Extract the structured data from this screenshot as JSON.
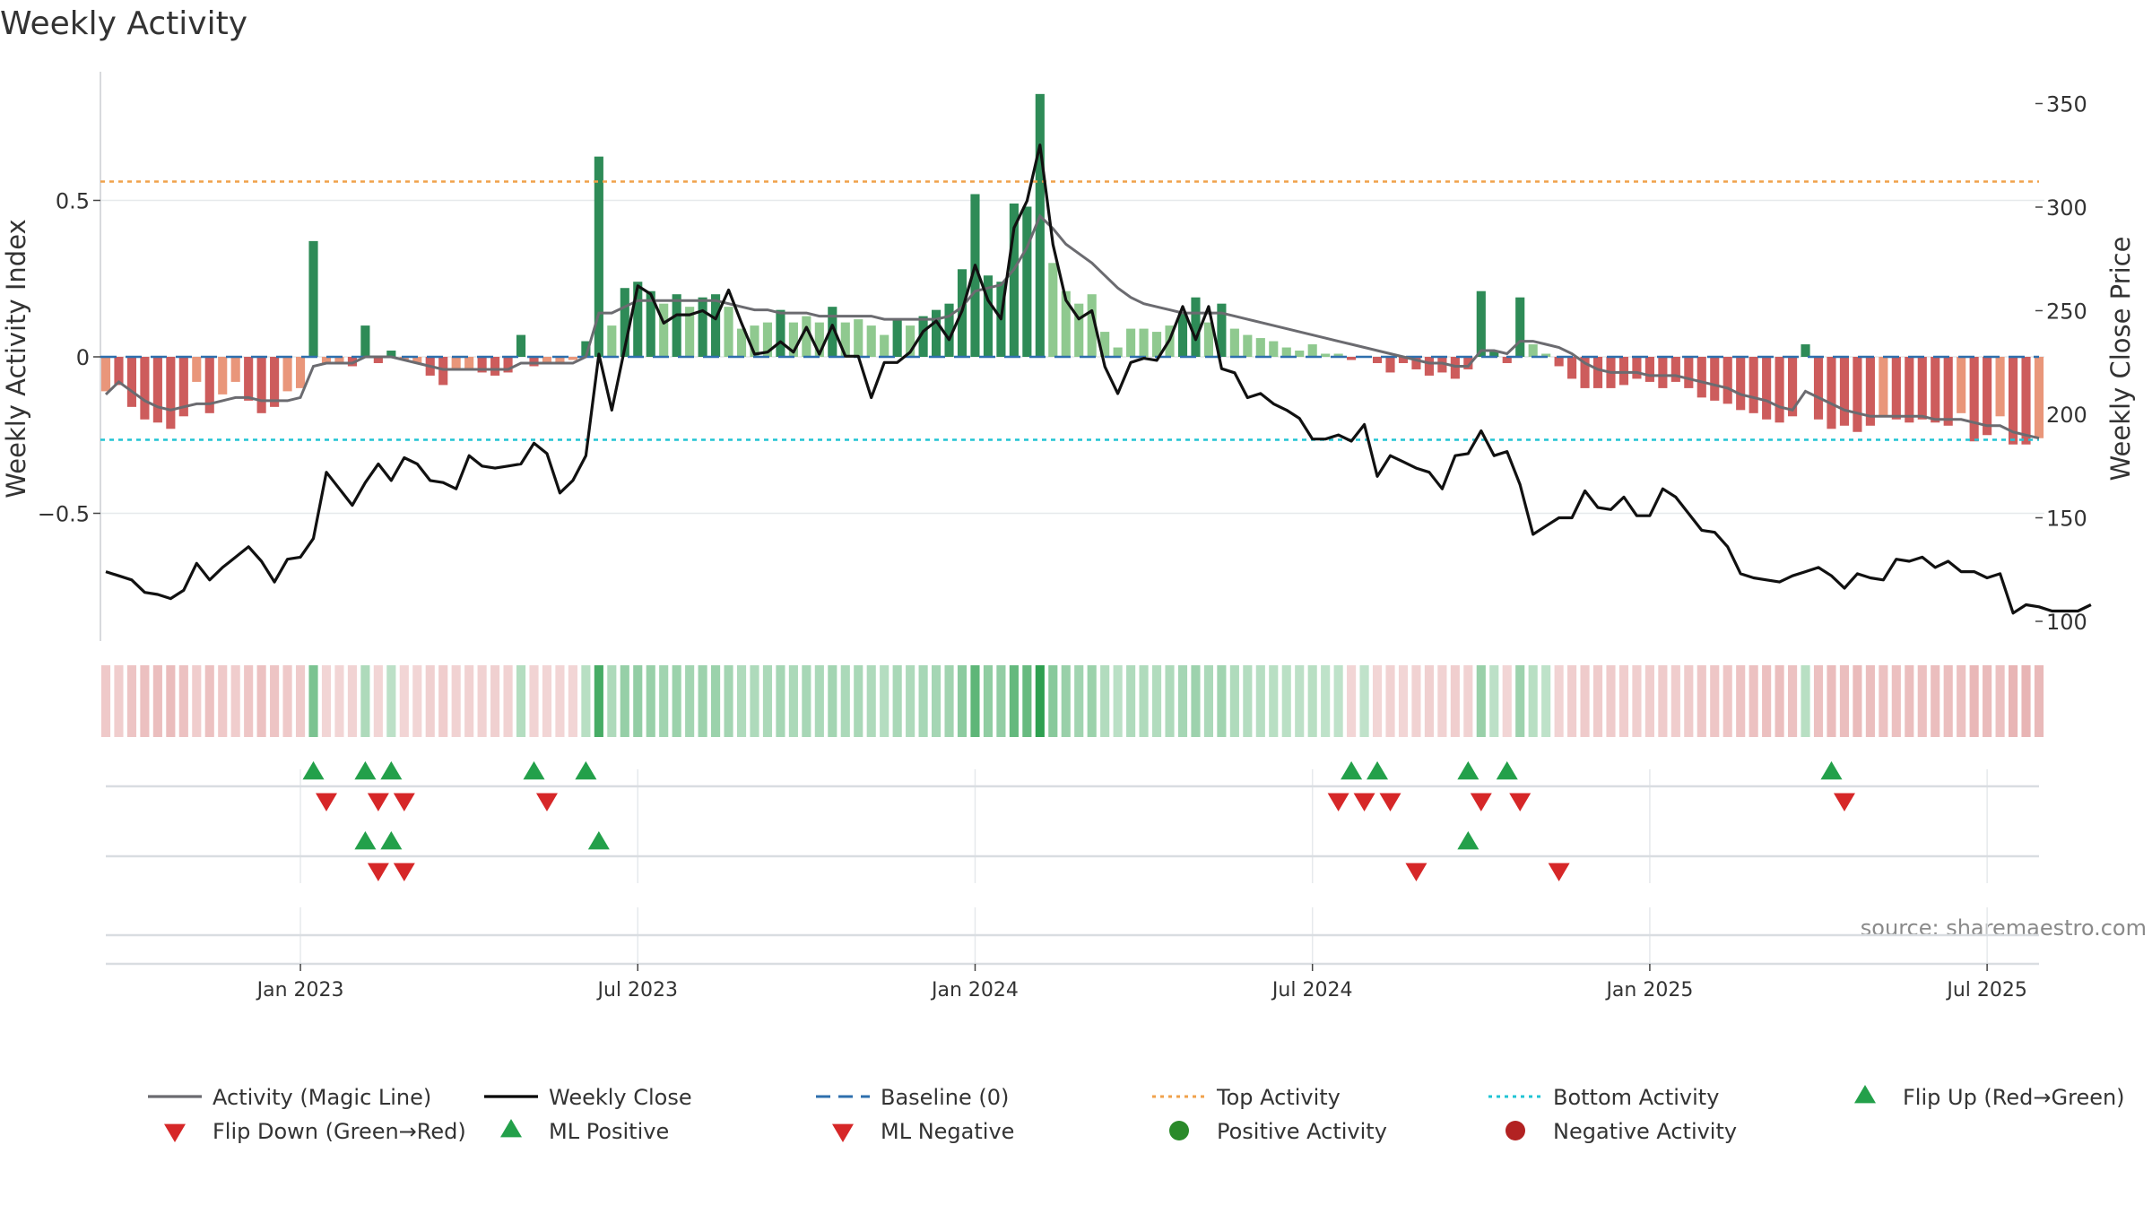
{
  "chart_data": {
    "type": "bar+line",
    "title": "Weekly Activity",
    "ylabel_left": "Weekly Activity Index",
    "ylabel_right": "Weekly Close Price",
    "ylim_left": [
      -0.9,
      0.85
    ],
    "ylim_right": [
      97,
      358
    ],
    "left_ticks": [
      {
        "v": 0.5,
        "label": "0.5"
      },
      {
        "v": 0,
        "label": "0"
      },
      {
        "v": -0.5,
        "label": "−0.5"
      }
    ],
    "right_ticks": [
      {
        "v": 350,
        "label": "350"
      },
      {
        "v": 300,
        "label": "300"
      },
      {
        "v": 250,
        "label": "250"
      },
      {
        "v": 200,
        "label": "200"
      },
      {
        "v": 150,
        "label": "150"
      },
      {
        "v": 100,
        "label": "100"
      }
    ],
    "x_ticks": [
      {
        "i": 15,
        "label": "Jan 2023"
      },
      {
        "i": 41,
        "label": "Jul 2023"
      },
      {
        "i": 67,
        "label": "Jan 2024"
      },
      {
        "i": 93,
        "label": "Jul 2024"
      },
      {
        "i": 119,
        "label": "Jan 2025"
      },
      {
        "i": 145,
        "label": "Jul 2025"
      }
    ],
    "top_activity": 0.56,
    "bottom_activity": -0.265,
    "activity": [
      -0.11,
      -0.09,
      -0.16,
      -0.2,
      -0.21,
      -0.23,
      -0.19,
      -0.08,
      -0.18,
      -0.12,
      -0.08,
      -0.14,
      -0.18,
      -0.16,
      -0.11,
      -0.1,
      0.37,
      -0.02,
      -0.02,
      -0.03,
      0.1,
      -0.02,
      0.02,
      -0.01,
      -0.02,
      -0.06,
      -0.09,
      -0.04,
      -0.04,
      -0.05,
      -0.06,
      -0.05,
      0.07,
      -0.03,
      -0.02,
      -0.02,
      -0.01,
      0.05,
      0.64,
      0.1,
      0.22,
      0.24,
      0.21,
      0.17,
      0.2,
      0.16,
      0.19,
      0.2,
      0.16,
      0.09,
      0.1,
      0.11,
      0.15,
      0.11,
      0.13,
      0.11,
      0.16,
      0.11,
      0.12,
      0.1,
      0.07,
      0.12,
      0.1,
      0.13,
      0.15,
      0.17,
      0.28,
      0.52,
      0.26,
      0.24,
      0.49,
      0.48,
      0.84,
      0.3,
      0.21,
      0.17,
      0.2,
      0.08,
      0.03,
      0.09,
      0.09,
      0.08,
      0.1,
      0.14,
      0.19,
      0.11,
      0.17,
      0.09,
      0.07,
      0.06,
      0.05,
      0.03,
      0.02,
      0.04,
      0.01,
      0.01,
      -0.01,
      0.0,
      -0.02,
      -0.05,
      -0.02,
      -0.04,
      -0.06,
      -0.05,
      -0.07,
      -0.04,
      0.21,
      0.02,
      -0.02,
      0.19,
      0.04,
      0.01,
      -0.03,
      -0.07,
      -0.1,
      -0.1,
      -0.1,
      -0.09,
      -0.07,
      -0.08,
      -0.1,
      -0.08,
      -0.1,
      -0.13,
      -0.14,
      -0.15,
      -0.17,
      -0.18,
      -0.2,
      -0.21,
      -0.19,
      0.04,
      -0.2,
      -0.23,
      -0.22,
      -0.24,
      -0.22,
      -0.19,
      -0.2,
      -0.21,
      -0.2,
      -0.21,
      -0.22,
      -0.18,
      -0.27,
      -0.25,
      -0.19,
      -0.28,
      -0.28,
      -0.26
    ],
    "magic_line": [
      -0.12,
      -0.08,
      -0.11,
      -0.14,
      -0.16,
      -0.17,
      -0.16,
      -0.15,
      -0.15,
      -0.14,
      -0.13,
      -0.13,
      -0.14,
      -0.14,
      -0.14,
      -0.13,
      -0.03,
      -0.02,
      -0.02,
      -0.02,
      0.0,
      0.0,
      0.0,
      -0.01,
      -0.02,
      -0.03,
      -0.04,
      -0.04,
      -0.04,
      -0.04,
      -0.04,
      -0.04,
      -0.02,
      -0.02,
      -0.02,
      -0.02,
      -0.02,
      0.0,
      0.14,
      0.14,
      0.16,
      0.18,
      0.18,
      0.18,
      0.18,
      0.18,
      0.18,
      0.18,
      0.17,
      0.16,
      0.15,
      0.15,
      0.14,
      0.14,
      0.14,
      0.13,
      0.13,
      0.13,
      0.13,
      0.13,
      0.12,
      0.12,
      0.12,
      0.12,
      0.12,
      0.13,
      0.16,
      0.21,
      0.22,
      0.23,
      0.28,
      0.35,
      0.45,
      0.41,
      0.36,
      0.33,
      0.3,
      0.26,
      0.22,
      0.19,
      0.17,
      0.16,
      0.15,
      0.14,
      0.14,
      0.14,
      0.14,
      0.13,
      0.12,
      0.11,
      0.1,
      0.09,
      0.08,
      0.07,
      0.06,
      0.05,
      0.04,
      0.03,
      0.02,
      0.01,
      0.0,
      -0.01,
      -0.02,
      -0.02,
      -0.03,
      -0.03,
      0.02,
      0.02,
      0.01,
      0.05,
      0.05,
      0.04,
      0.03,
      0.01,
      -0.02,
      -0.04,
      -0.05,
      -0.05,
      -0.05,
      -0.06,
      -0.06,
      -0.06,
      -0.07,
      -0.08,
      -0.09,
      -0.1,
      -0.12,
      -0.13,
      -0.14,
      -0.16,
      -0.17,
      -0.11,
      -0.13,
      -0.15,
      -0.17,
      -0.18,
      -0.19,
      -0.19,
      -0.19,
      -0.19,
      -0.19,
      -0.2,
      -0.2,
      -0.2,
      -0.21,
      -0.22,
      -0.22,
      -0.24,
      -0.25,
      -0.26
    ],
    "weekly_close": [
      124,
      122,
      120,
      114,
      113,
      111,
      115,
      128,
      120,
      126,
      131,
      136,
      129,
      119,
      130,
      131,
      140,
      172,
      164,
      156,
      167,
      176,
      168,
      179,
      176,
      168,
      167,
      164,
      180,
      175,
      174,
      175,
      176,
      186,
      181,
      162,
      168,
      180,
      229,
      202,
      232,
      262,
      258,
      244,
      248,
      248,
      250,
      246,
      260,
      244,
      229,
      230,
      235,
      230,
      242,
      229,
      243,
      228,
      228,
      208,
      225,
      225,
      230,
      240,
      245,
      236,
      250,
      272,
      255,
      246,
      290,
      303,
      330,
      282,
      255,
      246,
      250,
      223,
      210,
      225,
      227,
      226,
      236,
      252,
      236,
      252,
      222,
      220,
      208,
      210,
      205,
      202,
      198,
      188,
      188,
      190,
      187,
      195,
      170,
      180,
      177,
      174,
      172,
      164,
      180,
      181,
      192,
      180,
      182,
      166,
      142,
      146,
      150,
      150,
      163,
      155,
      154,
      160,
      151,
      151,
      164,
      160,
      152,
      144,
      143,
      136,
      123,
      121,
      120,
      119,
      122,
      124,
      126,
      122,
      116,
      123,
      121,
      120,
      130,
      129,
      131,
      126,
      129,
      124,
      124,
      121,
      123,
      104,
      108,
      107,
      105,
      105,
      105,
      108
    ],
    "flip_row1_up": [
      16,
      20,
      22,
      33,
      37,
      96,
      98,
      105,
      108,
      133
    ],
    "flip_row1_down": [
      17,
      21,
      23,
      34,
      95,
      97,
      99,
      106,
      109,
      134
    ],
    "flip_row2_up": [
      20,
      22,
      38,
      105
    ],
    "flip_row2_down": [
      21,
      23,
      101,
      112
    ],
    "legend": [
      {
        "label": "Activity (Magic Line)",
        "kind": "line",
        "color": "#6b6b70"
      },
      {
        "label": "Weekly Close",
        "kind": "line",
        "color": "#000000"
      },
      {
        "label": "Baseline (0)",
        "kind": "dash",
        "color": "#2e6fad"
      },
      {
        "label": "Top Activity",
        "kind": "dot",
        "color": "#f0a24b"
      },
      {
        "label": "Bottom Activity",
        "kind": "dot",
        "color": "#21c4d4"
      },
      {
        "label": "Flip Up (Red→Green)",
        "kind": "tri-up",
        "color": "#23a04a"
      },
      {
        "label": "Flip Down (Green→Red)",
        "kind": "tri-down",
        "color": "#d62728"
      },
      {
        "label": "ML Positive",
        "kind": "tri-up",
        "color": "#23a04a"
      },
      {
        "label": "ML Negative",
        "kind": "tri-down",
        "color": "#d62728"
      },
      {
        "label": "Positive Activity",
        "kind": "circle",
        "color": "#2a8a2a"
      },
      {
        "label": "Negative Activity",
        "kind": "circle",
        "color": "#b22222"
      }
    ],
    "source": "source: sharemaestro.com"
  }
}
